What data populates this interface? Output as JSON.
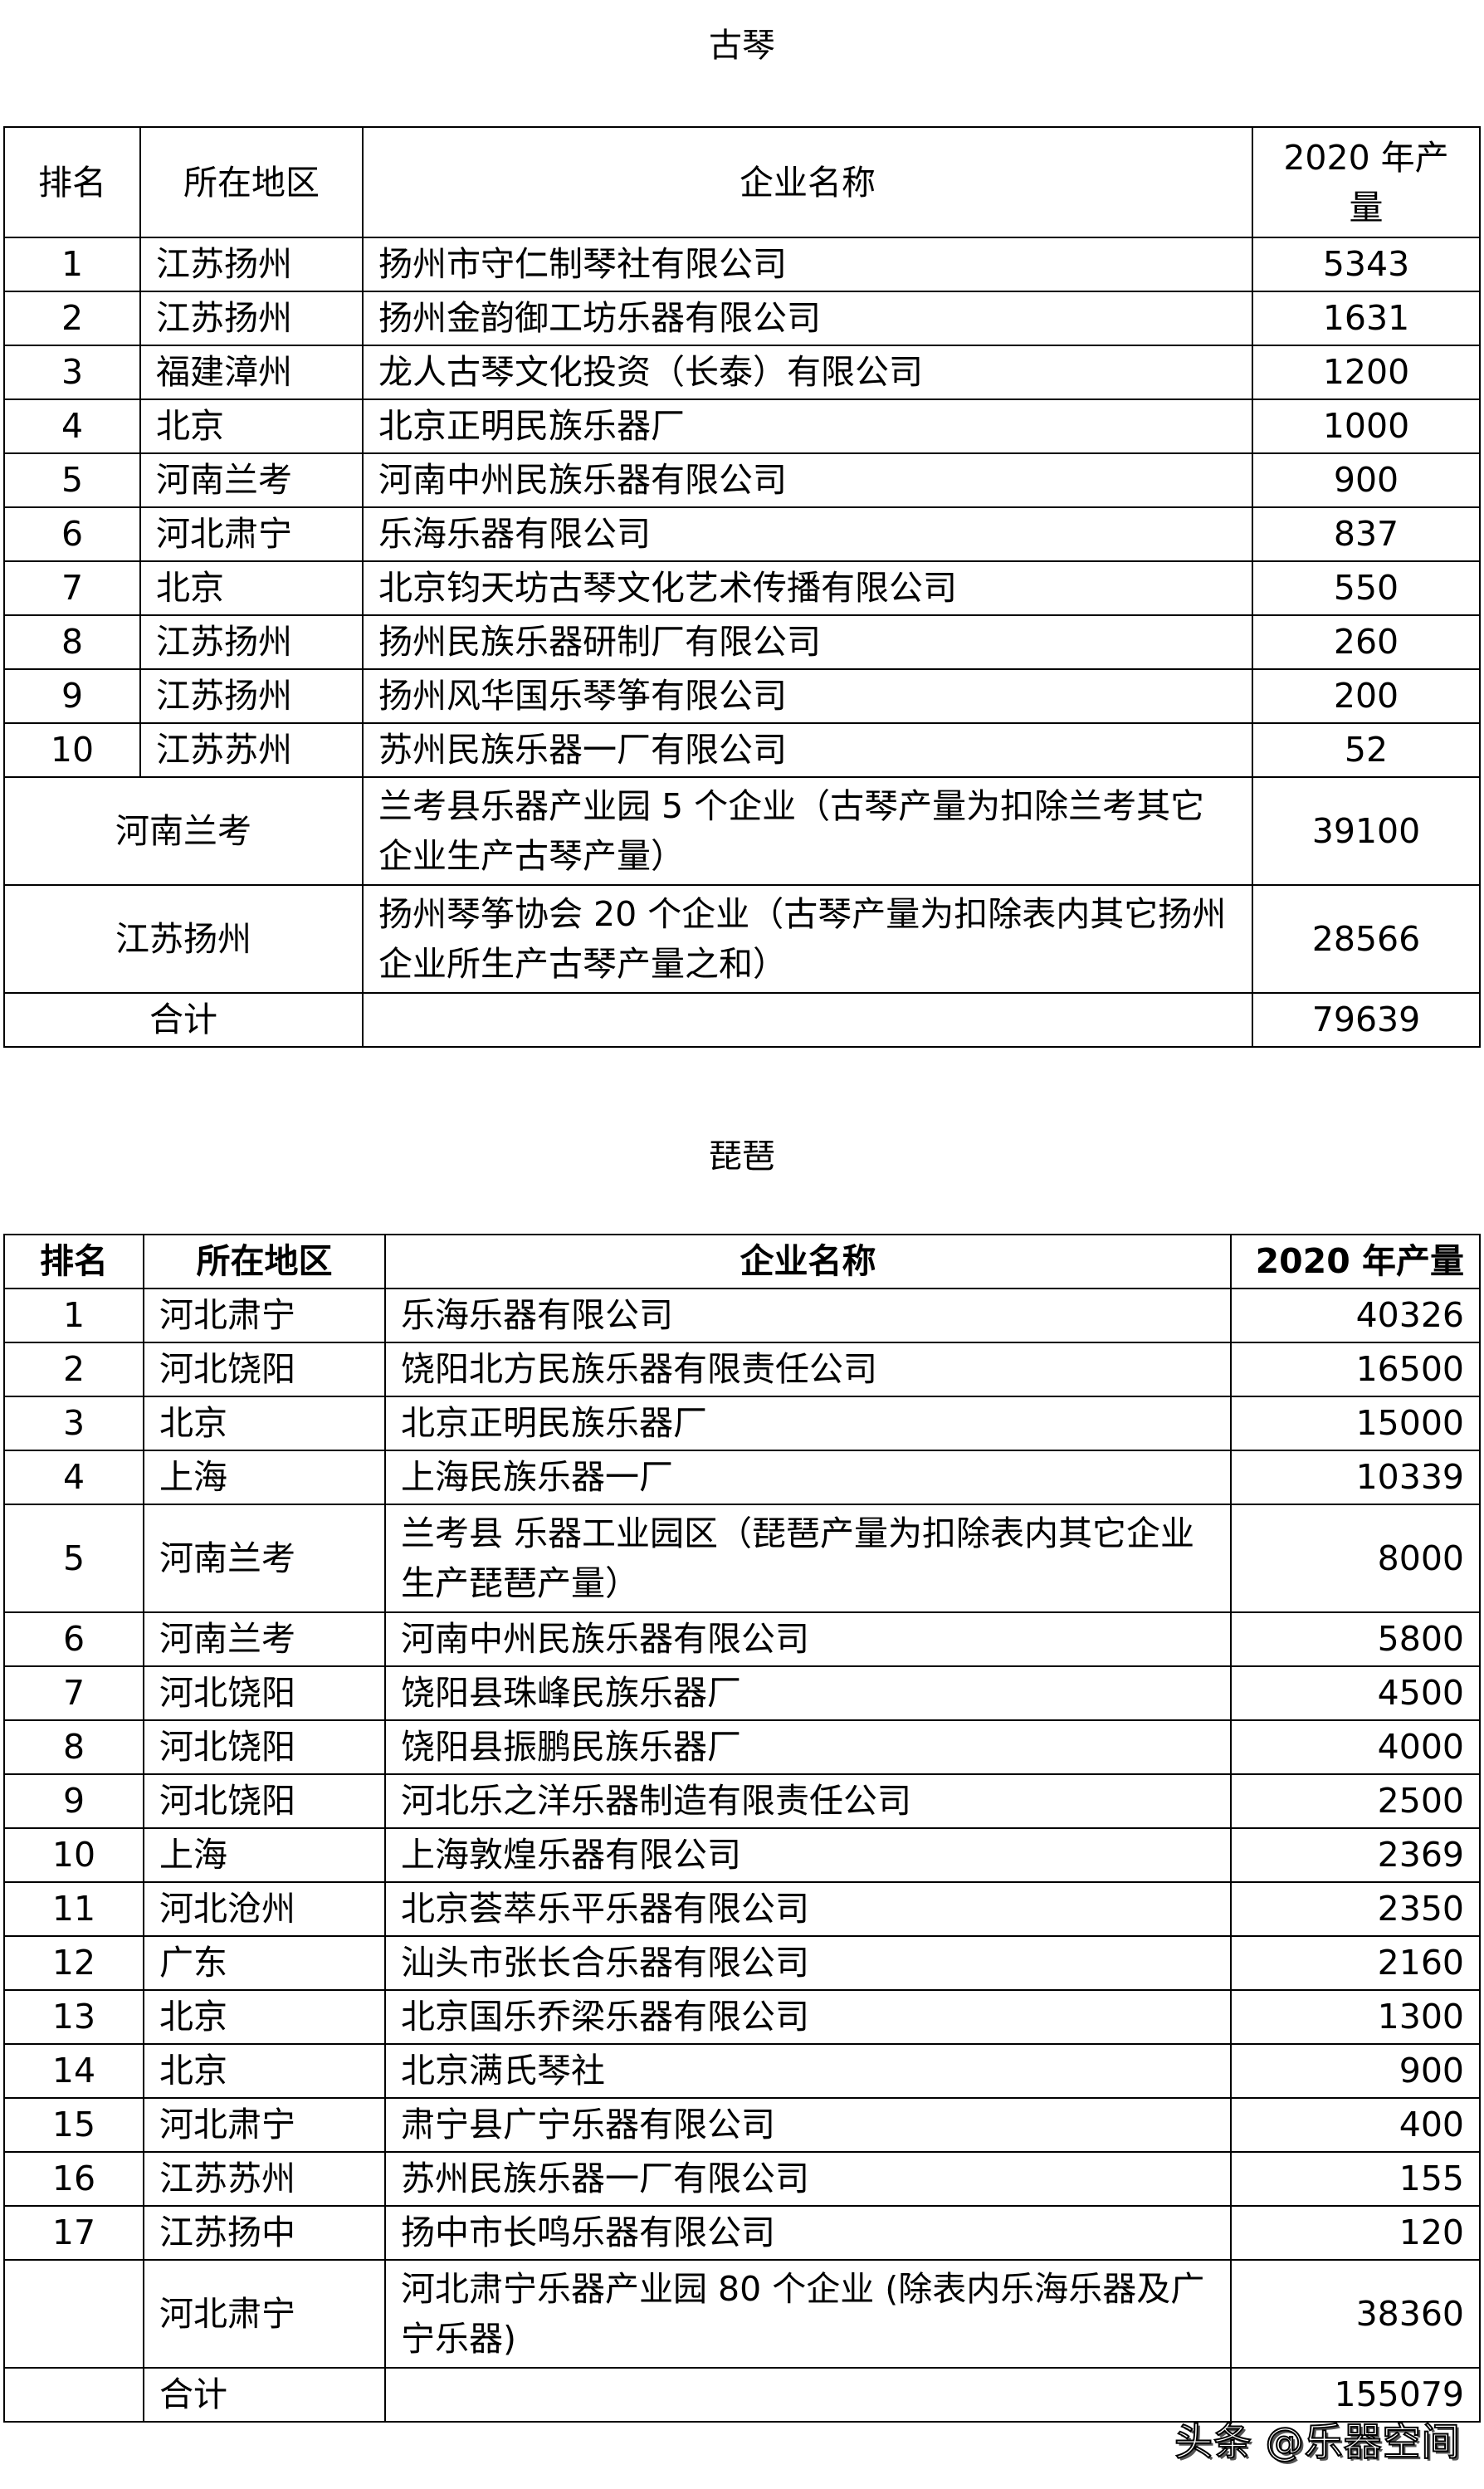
{
  "guqin": {
    "title": "古琴",
    "headers": [
      "排名",
      "所在地区",
      "企业名称",
      "2020 年产量"
    ],
    "rows": [
      [
        "1",
        "江苏扬州",
        "扬州市守仁制琴社有限公司",
        "5343"
      ],
      [
        "2",
        "江苏扬州",
        "扬州金韵御工坊乐器有限公司",
        "1631"
      ],
      [
        "3",
        "福建漳州",
        "龙人古琴文化投资（长泰）有限公司",
        "1200"
      ],
      [
        "4",
        "北京",
        "北京正明民族乐器厂",
        "1000"
      ],
      [
        "5",
        "河南兰考",
        "河南中州民族乐器有限公司",
        "900"
      ],
      [
        "6",
        "河北肃宁",
        "乐海乐器有限公司",
        "837"
      ],
      [
        "7",
        "北京",
        "北京钧天坊古琴文化艺术传播有限公司",
        "550"
      ],
      [
        "8",
        "江苏扬州",
        "扬州民族乐器研制厂有限公司",
        "260"
      ],
      [
        "9",
        "江苏扬州",
        "扬州风华国乐琴筝有限公司",
        "200"
      ],
      [
        "10",
        "江苏苏州",
        "苏州民族乐器一厂有限公司",
        "52"
      ]
    ],
    "extra_rows": [
      [
        "河南兰考",
        "兰考县乐器产业园 5 个企业（古琴产量为扣除兰考其它企业生产古琴产量）",
        "39100"
      ],
      [
        "江苏扬州",
        "扬州琴筝协会 20 个企业（古琴产量为扣除表内其它扬州企业所生产古琴产量之和）",
        "28566"
      ]
    ],
    "total": {
      "label": "合计",
      "value": "79639"
    }
  },
  "pipa": {
    "title": "琵琶",
    "headers": [
      "排名",
      "所在地区",
      "企业名称",
      "2020 年产量"
    ],
    "rows": [
      [
        "1",
        "河北肃宁",
        "乐海乐器有限公司",
        "40326"
      ],
      [
        "2",
        "河北饶阳",
        "饶阳北方民族乐器有限责任公司",
        "16500"
      ],
      [
        "3",
        "北京",
        "北京正明民族乐器厂",
        "15000"
      ],
      [
        "4",
        "上海",
        "上海民族乐器一厂",
        "10339"
      ],
      [
        "5",
        "河南兰考",
        "兰考县 乐器工业园区（琵琶产量为扣除表内其它企业生产琵琶产量）",
        "8000"
      ],
      [
        "6",
        "河南兰考",
        "河南中州民族乐器有限公司",
        "5800"
      ],
      [
        "7",
        "河北饶阳",
        "饶阳县珠峰民族乐器厂",
        "4500"
      ],
      [
        "8",
        "河北饶阳",
        "饶阳县振鹏民族乐器厂",
        "4000"
      ],
      [
        "9",
        "河北饶阳",
        "河北乐之洋乐器制造有限责任公司",
        "2500"
      ],
      [
        "10",
        "上海",
        "上海敦煌乐器有限公司",
        "2369"
      ],
      [
        "11",
        "河北沧州",
        "北京荟萃乐平乐器有限公司",
        "2350"
      ],
      [
        "12",
        "广东",
        "汕头市张长合乐器有限公司",
        "2160"
      ],
      [
        "13",
        "北京",
        "北京国乐乔梁乐器有限公司",
        "1300"
      ],
      [
        "14",
        "北京",
        "北京满氏琴社",
        "900"
      ],
      [
        "15",
        "河北肃宁",
        "肃宁县广宁乐器有限公司",
        "400"
      ],
      [
        "16",
        "江苏苏州",
        "苏州民族乐器一厂有限公司",
        "155"
      ],
      [
        "17",
        "江苏扬中",
        "扬中市长鸣乐器有限公司",
        "120"
      ],
      [
        "",
        "河北肃宁",
        "河北肃宁乐器产业园 80 个企业 (除表内乐海乐器及广宁乐器)",
        "38360"
      ]
    ],
    "total": {
      "label": "合计",
      "value": "155079"
    }
  },
  "watermark": "头条 @乐器空间"
}
